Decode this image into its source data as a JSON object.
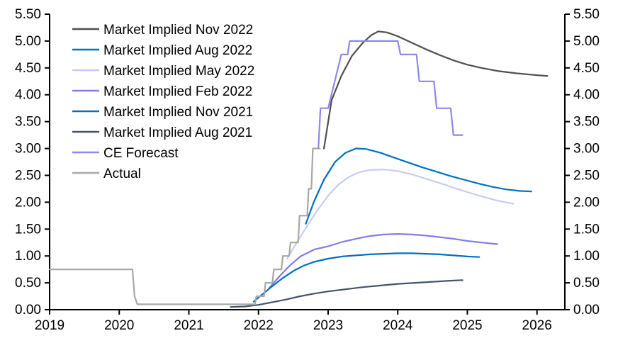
{
  "chart_data": {
    "type": "line",
    "title": "",
    "xlabel": "",
    "ylabel": "",
    "grid": false,
    "x_axis": {
      "min": 2019.0,
      "max": 2026.4,
      "tick_values": [
        2019,
        2020,
        2021,
        2022,
        2023,
        2024,
        2025,
        2026
      ],
      "tick_labels": [
        "2019",
        "2020",
        "2021",
        "2022",
        "2023",
        "2024",
        "2025",
        "2026"
      ]
    },
    "y_axis_left": {
      "min": 0.0,
      "max": 5.5,
      "tick_values": [
        0.0,
        0.5,
        1.0,
        1.5,
        2.0,
        2.5,
        3.0,
        3.5,
        4.0,
        4.5,
        5.0,
        5.5
      ],
      "tick_labels": [
        "0.00",
        "0.50",
        "1.00",
        "1.50",
        "2.00",
        "2.50",
        "3.00",
        "3.50",
        "4.00",
        "4.50",
        "5.00",
        "5.50"
      ]
    },
    "y_axis_right": {
      "min": 0.0,
      "max": 5.5,
      "tick_values": [
        0.0,
        0.5,
        1.0,
        1.5,
        2.0,
        2.5,
        3.0,
        3.5,
        4.0,
        4.5,
        5.0,
        5.5
      ],
      "tick_labels": [
        "0.00",
        "0.50",
        "1.00",
        "1.50",
        "2.00",
        "2.50",
        "3.00",
        "3.50",
        "4.00",
        "4.50",
        "5.00",
        "5.50"
      ]
    },
    "legend": {
      "position": "top-left",
      "entries": [
        "Market Implied Nov 2022",
        "Market Implied Aug 2022",
        "Market Implied May 2022",
        "Market Implied Feb 2022",
        "Market Implied Nov 2021",
        "Market Implied Aug 2021",
        "CE Forecast",
        "Actual"
      ]
    },
    "series": [
      {
        "name": "Market Implied Nov 2022",
        "id": "market-implied-nov-2022",
        "color": "#4F4F4F",
        "points": [
          [
            2022.94,
            3.0
          ],
          [
            2023.05,
            3.9
          ],
          [
            2023.19,
            4.35
          ],
          [
            2023.34,
            4.72
          ],
          [
            2023.5,
            4.97
          ],
          [
            2023.62,
            5.11
          ],
          [
            2023.72,
            5.18
          ],
          [
            2023.85,
            5.16
          ],
          [
            2024.0,
            5.09
          ],
          [
            2024.2,
            4.97
          ],
          [
            2024.4,
            4.85
          ],
          [
            2024.6,
            4.74
          ],
          [
            2024.8,
            4.64
          ],
          [
            2025.0,
            4.56
          ],
          [
            2025.2,
            4.5
          ],
          [
            2025.45,
            4.44
          ],
          [
            2025.7,
            4.4
          ],
          [
            2025.95,
            4.37
          ],
          [
            2026.15,
            4.35
          ]
        ]
      },
      {
        "name": "Market Implied Aug 2022",
        "id": "market-implied-aug-2022",
        "color": "#0070C0",
        "points": [
          [
            2022.68,
            1.6
          ],
          [
            2022.8,
            2.02
          ],
          [
            2022.94,
            2.42
          ],
          [
            2023.1,
            2.75
          ],
          [
            2023.25,
            2.92
          ],
          [
            2023.4,
            3.0
          ],
          [
            2023.55,
            2.99
          ],
          [
            2023.75,
            2.92
          ],
          [
            2023.95,
            2.83
          ],
          [
            2024.15,
            2.74
          ],
          [
            2024.35,
            2.65
          ],
          [
            2024.55,
            2.57
          ],
          [
            2024.75,
            2.49
          ],
          [
            2024.95,
            2.42
          ],
          [
            2025.15,
            2.35
          ],
          [
            2025.35,
            2.29
          ],
          [
            2025.55,
            2.24
          ],
          [
            2025.75,
            2.21
          ],
          [
            2025.92,
            2.2
          ]
        ]
      },
      {
        "name": "Market Implied May 2022",
        "id": "market-implied-may-2022",
        "color": "#C8CBF5",
        "points": [
          [
            2022.41,
            0.95
          ],
          [
            2022.55,
            1.25
          ],
          [
            2022.7,
            1.56
          ],
          [
            2022.85,
            1.86
          ],
          [
            2023.0,
            2.12
          ],
          [
            2023.15,
            2.33
          ],
          [
            2023.3,
            2.47
          ],
          [
            2023.45,
            2.56
          ],
          [
            2023.6,
            2.6
          ],
          [
            2023.8,
            2.61
          ],
          [
            2024.0,
            2.58
          ],
          [
            2024.2,
            2.52
          ],
          [
            2024.4,
            2.44
          ],
          [
            2024.6,
            2.36
          ],
          [
            2024.8,
            2.27
          ],
          [
            2025.0,
            2.19
          ],
          [
            2025.2,
            2.11
          ],
          [
            2025.4,
            2.04
          ],
          [
            2025.55,
            2.0
          ],
          [
            2025.66,
            1.97
          ]
        ]
      },
      {
        "name": "Market Implied Feb 2022",
        "id": "market-implied-feb-2022",
        "color": "#817EE4",
        "points": [
          [
            2022.15,
            0.4
          ],
          [
            2022.3,
            0.62
          ],
          [
            2022.45,
            0.82
          ],
          [
            2022.6,
            0.99
          ],
          [
            2022.8,
            1.12
          ],
          [
            2023.0,
            1.18
          ],
          [
            2023.2,
            1.26
          ],
          [
            2023.4,
            1.32
          ],
          [
            2023.6,
            1.37
          ],
          [
            2023.8,
            1.4
          ],
          [
            2024.0,
            1.41
          ],
          [
            2024.2,
            1.4
          ],
          [
            2024.4,
            1.38
          ],
          [
            2024.6,
            1.35
          ],
          [
            2024.8,
            1.32
          ],
          [
            2025.0,
            1.28
          ],
          [
            2025.2,
            1.25
          ],
          [
            2025.43,
            1.22
          ]
        ]
      },
      {
        "name": "Market Implied Nov 2021",
        "id": "market-implied-nov-2021",
        "color": "#0070C0",
        "points": [
          [
            2021.93,
            0.15
          ],
          [
            2022.05,
            0.28
          ],
          [
            2022.2,
            0.44
          ],
          [
            2022.35,
            0.59
          ],
          [
            2022.5,
            0.72
          ],
          [
            2022.65,
            0.82
          ],
          [
            2022.8,
            0.89
          ],
          [
            2023.0,
            0.95
          ],
          [
            2023.2,
            0.99
          ],
          [
            2023.4,
            1.01
          ],
          [
            2023.6,
            1.03
          ],
          [
            2023.8,
            1.04
          ],
          [
            2024.0,
            1.05
          ],
          [
            2024.2,
            1.05
          ],
          [
            2024.4,
            1.04
          ],
          [
            2024.6,
            1.03
          ],
          [
            2024.8,
            1.01
          ],
          [
            2025.0,
            0.99
          ],
          [
            2025.17,
            0.98
          ]
        ]
      },
      {
        "name": "Market Implied Aug 2021",
        "id": "market-implied-aug-2021",
        "color": "#44546A",
        "points": [
          [
            2021.6,
            0.05
          ],
          [
            2021.8,
            0.06
          ],
          [
            2022.0,
            0.09
          ],
          [
            2022.2,
            0.14
          ],
          [
            2022.4,
            0.19
          ],
          [
            2022.6,
            0.25
          ],
          [
            2022.8,
            0.3
          ],
          [
            2023.0,
            0.34
          ],
          [
            2023.25,
            0.38
          ],
          [
            2023.5,
            0.42
          ],
          [
            2023.75,
            0.45
          ],
          [
            2024.0,
            0.48
          ],
          [
            2024.25,
            0.5
          ],
          [
            2024.5,
            0.52
          ],
          [
            2024.75,
            0.54
          ],
          [
            2024.93,
            0.55
          ]
        ]
      },
      {
        "name": "CE Forecast",
        "id": "ce-forecast",
        "color": "#8B88F0",
        "points": [
          [
            2022.86,
            3.0
          ],
          [
            2022.89,
            3.75
          ],
          [
            2023.0,
            3.75
          ],
          [
            2023.19,
            4.75
          ],
          [
            2023.28,
            4.75
          ],
          [
            2023.31,
            5.0
          ],
          [
            2024.0,
            5.0
          ],
          [
            2024.04,
            4.75
          ],
          [
            2024.27,
            4.75
          ],
          [
            2024.31,
            4.25
          ],
          [
            2024.52,
            4.25
          ],
          [
            2024.56,
            3.75
          ],
          [
            2024.76,
            3.75
          ],
          [
            2024.8,
            3.25
          ],
          [
            2024.93,
            3.25
          ]
        ]
      },
      {
        "name": "Actual",
        "id": "actual",
        "color": "#A8A8A8",
        "points": [
          [
            2019.0,
            0.75
          ],
          [
            2020.19,
            0.75
          ],
          [
            2020.22,
            0.25
          ],
          [
            2020.26,
            0.1
          ],
          [
            2021.95,
            0.1
          ],
          [
            2021.97,
            0.25
          ],
          [
            2022.08,
            0.25
          ],
          [
            2022.1,
            0.5
          ],
          [
            2022.2,
            0.5
          ],
          [
            2022.22,
            0.75
          ],
          [
            2022.33,
            0.75
          ],
          [
            2022.35,
            1.0
          ],
          [
            2022.44,
            1.0
          ],
          [
            2022.46,
            1.25
          ],
          [
            2022.57,
            1.25
          ],
          [
            2022.59,
            1.75
          ],
          [
            2022.7,
            1.75
          ],
          [
            2022.72,
            2.25
          ],
          [
            2022.76,
            2.25
          ],
          [
            2022.78,
            3.0
          ],
          [
            2022.88,
            3.0
          ]
        ]
      }
    ]
  }
}
